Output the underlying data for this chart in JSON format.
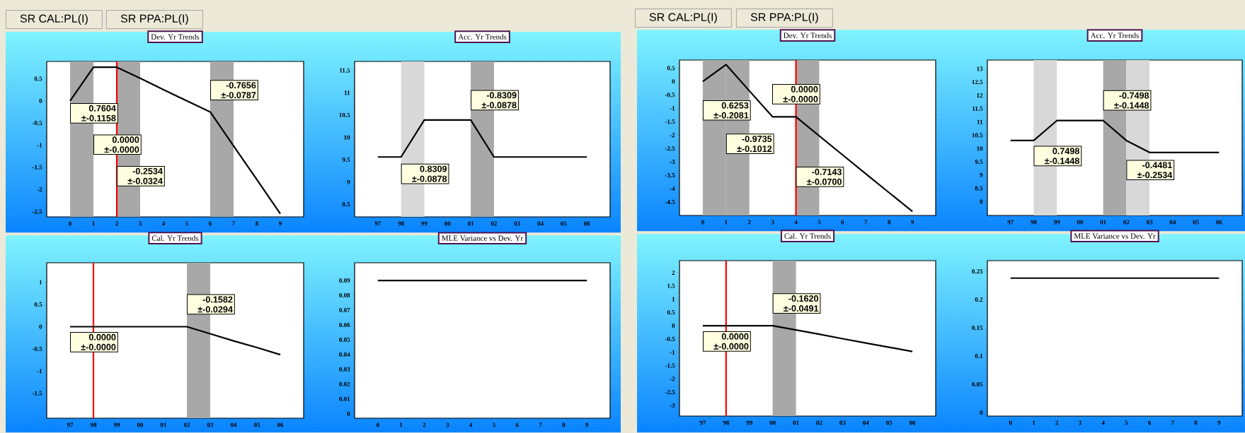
{
  "chart_data": [
    {
      "type": "line",
      "title": "Dev. Yr Trends",
      "x": [
        0,
        1,
        2,
        3,
        4,
        5,
        6,
        7,
        8,
        9
      ],
      "series": [
        {
          "color": "#000000",
          "values": [
            0,
            0.76,
            0.76,
            0.51,
            0.25,
            0,
            -0.25,
            -1.02,
            -1.78,
            -2.55
          ]
        }
      ],
      "xlim": [
        -1,
        10
      ],
      "ylim": [
        -2.62,
        0.89
      ],
      "xticks": [
        0,
        1,
        2,
        3,
        4,
        5,
        6,
        7,
        8,
        9
      ],
      "yticks": [
        -2.5,
        -2,
        -1.5,
        -1,
        -0.5,
        0,
        0.5
      ],
      "bands": [
        {
          "axis": "x",
          "from": 0,
          "to": 1,
          "color": "#a8a8a8"
        },
        {
          "axis": "x",
          "from": 2,
          "to": 3,
          "color": "#a8a8a8"
        },
        {
          "axis": "x",
          "from": 6,
          "to": 7,
          "color": "#a8a8a8"
        }
      ],
      "ref_lines": [
        {
          "axis": "x",
          "value": 2,
          "color": "#ff0000"
        }
      ],
      "annotations": [
        "SR CAL:PL(I)",
        "SR PPA:PL(I)",
        {
          "text": "0.7604 ±-0.1158",
          "x": 0,
          "y": -0.05
        },
        {
          "text": "0.0000 ±-0.0000",
          "x": 1,
          "y": -0.76
        },
        {
          "text": "-0.2534 ±-0.0324",
          "x": 2,
          "y": -1.47
        },
        {
          "text": "-0.7656 ±-0.0787",
          "x": 6,
          "y": 0.47
        }
      ]
    },
    {
      "type": "line",
      "title": "Acc. Yr Trends",
      "x": [
        1997,
        1998,
        1999,
        2000,
        2001,
        2002,
        2003,
        2004,
        2005,
        2006
      ],
      "series": [
        {
          "color": "#000000",
          "values": [
            9.56,
            9.56,
            10.39,
            10.39,
            10.39,
            9.56,
            9.56,
            9.56,
            9.56,
            9.56
          ]
        }
      ],
      "xlim": [
        1996,
        2007
      ],
      "ylim": [
        8.22,
        11.7
      ],
      "xticks": [
        {
          "value": 1997,
          "label": "97"
        },
        {
          "value": 1998,
          "label": "98"
        },
        {
          "value": 1999,
          "label": "99"
        },
        {
          "value": 2000,
          "label": "00"
        },
        {
          "value": 2001,
          "label": "01"
        },
        {
          "value": 2002,
          "label": "02"
        },
        {
          "value": 2003,
          "label": "03"
        },
        {
          "value": 2004,
          "label": "04"
        },
        {
          "value": 2005,
          "label": "05"
        },
        {
          "value": 2006,
          "label": "06"
        }
      ],
      "yticks": [
        8.5,
        9,
        9.5,
        10,
        10.5,
        11,
        11.5
      ],
      "bands": [
        {
          "axis": "x",
          "from": 1998,
          "to": 1999,
          "color": "#d8d8d8"
        },
        {
          "axis": "x",
          "from": 2001,
          "to": 2002,
          "color": "#a8a8a8"
        }
      ],
      "annotations": [
        {
          "text": "-0.8309 ±-0.0878",
          "x": 2001,
          "y": 11.06
        },
        {
          "text": "0.8309 ±-0.0878",
          "x": 1998,
          "y": 9.41
        }
      ]
    },
    {
      "type": "line",
      "title": "Cal. Yr Trends",
      "x": [
        1997,
        1998,
        1999,
        2000,
        2001,
        2002,
        2003,
        2004,
        2005,
        2006
      ],
      "series": [
        {
          "color": "#000000",
          "values": [
            0,
            0,
            0,
            0,
            0,
            0,
            -0.16,
            -0.32,
            -0.47,
            -0.63
          ]
        }
      ],
      "xlim": [
        1996,
        2007
      ],
      "ylim": [
        -2.06,
        1.44
      ],
      "xticks": [
        {
          "value": 1997,
          "label": "97"
        },
        {
          "value": 1998,
          "label": "98"
        },
        {
          "value": 1999,
          "label": "99"
        },
        {
          "value": 2000,
          "label": "00"
        },
        {
          "value": 2001,
          "label": "01"
        },
        {
          "value": 2002,
          "label": "02"
        },
        {
          "value": 2003,
          "label": "03"
        },
        {
          "value": 2004,
          "label": "04"
        },
        {
          "value": 2005,
          "label": "05"
        },
        {
          "value": 2006,
          "label": "06"
        }
      ],
      "yticks": [
        -1.5,
        -1,
        -0.5,
        0,
        0.5,
        1
      ],
      "bands": [
        {
          "axis": "x",
          "from": 2002,
          "to": 2003,
          "color": "#a8a8a8"
        }
      ],
      "ref_lines": [
        {
          "axis": "x",
          "value": 1998,
          "color": "#ff0000"
        }
      ],
      "annotations": [
        {
          "text": "-0.1582 ±-0.0294",
          "x": 2002,
          "y": 0.73
        },
        "0.0000 ±-0.0000"
      ]
    },
    {
      "type": "line",
      "title": "MLE Variance vs Dev. Yr",
      "x": [
        0,
        1,
        2,
        3,
        4,
        5,
        6,
        7,
        8,
        9
      ],
      "series": [
        {
          "color": "#000000",
          "values": [
            0.09,
            0.09,
            0.09,
            0.09,
            0.09,
            0.09,
            0.09,
            0.09,
            0.09,
            0.09
          ]
        }
      ],
      "xlim": [
        -1,
        10
      ],
      "ylim": [
        -0.003,
        0.102
      ],
      "xticks": [
        0,
        1,
        2,
        3,
        4,
        5,
        6,
        7,
        8,
        9
      ],
      "yticks": [
        0,
        0.01,
        0.02,
        0.03,
        0.04,
        0.05,
        0.06,
        0.07,
        0.08,
        0.09
      ]
    },
    {
      "type": "line",
      "title": "Dev. Yr Trends",
      "x": [
        0,
        1,
        2,
        3,
        4,
        5,
        6,
        7,
        8,
        9
      ],
      "series": [
        {
          "color": "#000000",
          "values": [
            0,
            0.63,
            -0.35,
            -1.32,
            -1.32,
            -2.03,
            -2.74,
            -3.45,
            -4.15,
            -4.85
          ]
        }
      ],
      "xlim": [
        -1,
        10
      ],
      "ylim": [
        -5.0,
        0.8
      ],
      "xticks": [
        0,
        1,
        2,
        3,
        4,
        5,
        6,
        7,
        8,
        9
      ],
      "yticks": [
        -4.5,
        -4,
        -3.5,
        -3,
        -2.5,
        -2,
        -1.5,
        -1,
        -0.5,
        0,
        0.5
      ],
      "bands": [
        {
          "axis": "x",
          "from": 0,
          "to": 1,
          "color": "#a8a8a8"
        },
        {
          "axis": "x",
          "from": 1,
          "to": 2,
          "color": "#a8a8a8"
        },
        {
          "axis": "x",
          "from": 4,
          "to": 5,
          "color": "#a8a8a8"
        }
      ],
      "ref_lines": [
        {
          "axis": "x",
          "value": 4,
          "color": "#ff0000"
        }
      ],
      "annotations": [
        "SR CAL:PL(I)",
        "SR PPA:PL(I)",
        {
          "text": "0.6253 ±-0.2081",
          "x": 0,
          "y": -0.7
        },
        {
          "text": "-0.9735 ±-0.1012",
          "x": 1,
          "y": -1.95
        },
        "0.0000 ±-0.0000",
        {
          "text": "-0.7143 ±-0.0700",
          "x": 4,
          "y": -3.18
        }
      ]
    },
    {
      "type": "line",
      "title": "Acc. Yr Trends",
      "x": [
        1997,
        1998,
        1999,
        2000,
        2001,
        2002,
        2003,
        2004,
        2005,
        2006
      ],
      "series": [
        {
          "color": "#000000",
          "values": [
            10.3,
            10.3,
            11.05,
            11.05,
            11.05,
            10.3,
            9.85,
            9.85,
            9.85,
            9.85
          ]
        }
      ],
      "xlim": [
        1996,
        2007
      ],
      "ylim": [
        7.48,
        13.33
      ],
      "xticks": [
        {
          "value": 1997,
          "label": "97"
        },
        {
          "value": 1998,
          "label": "98"
        },
        {
          "value": 1999,
          "label": "99"
        },
        {
          "value": 2000,
          "label": "00"
        },
        {
          "value": 2001,
          "label": "01"
        },
        {
          "value": 2002,
          "label": "02"
        },
        {
          "value": 2003,
          "label": "03"
        },
        {
          "value": 2004,
          "label": "04"
        },
        {
          "value": 2005,
          "label": "05"
        },
        {
          "value": 2006,
          "label": "06"
        }
      ],
      "yticks": [
        8,
        8.5,
        9,
        9.5,
        10,
        10.5,
        11,
        11.5,
        12,
        12.5,
        13
      ],
      "bands": [
        {
          "axis": "x",
          "from": 1998,
          "to": 1999,
          "color": "#d8d8d8"
        },
        {
          "axis": "x",
          "from": 2001,
          "to": 2002,
          "color": "#a8a8a8"
        },
        {
          "axis": "x",
          "from": 2002,
          "to": 2003,
          "color": "#d8d8d8"
        }
      ],
      "annotations": [
        {
          "text": "-0.7498 ±-0.1448",
          "x": 2001,
          "y": 12.19
        },
        {
          "text": "0.7498 ±-0.1448",
          "x": 1998,
          "y": 10.1
        },
        {
          "text": "-0.4481 ±-0.2534",
          "x": 2002,
          "y": 9.57
        }
      ]
    },
    {
      "type": "line",
      "title": "Cal. Yr Trends",
      "x": [
        1997,
        1998,
        1999,
        2000,
        2001,
        2002,
        2003,
        2004,
        2005,
        2006
      ],
      "series": [
        {
          "color": "#000000",
          "values": [
            0,
            0,
            0,
            0,
            -0.16,
            -0.32,
            -0.49,
            -0.65,
            -0.81,
            -0.97
          ]
        }
      ],
      "xlim": [
        1996,
        2007
      ],
      "ylim": [
        -3.4,
        2.45
      ],
      "xticks": [
        {
          "value": 1997,
          "label": "97"
        },
        {
          "value": 1998,
          "label": "98"
        },
        {
          "value": 1999,
          "label": "99"
        },
        {
          "value": 2000,
          "label": "00"
        },
        {
          "value": 2001,
          "label": "01"
        },
        {
          "value": 2002,
          "label": "02"
        },
        {
          "value": 2003,
          "label": "03"
        },
        {
          "value": 2004,
          "label": "04"
        },
        {
          "value": 2005,
          "label": "05"
        },
        {
          "value": 2006,
          "label": "06"
        }
      ],
      "yticks": [
        -3,
        -2.5,
        -2,
        -1.5,
        -1,
        -0.5,
        0,
        0.5,
        1,
        1.5,
        2
      ],
      "bands": [
        {
          "axis": "x",
          "from": 2000,
          "to": 2001,
          "color": "#a8a8a8"
        }
      ],
      "ref_lines": [
        {
          "axis": "x",
          "value": 1998,
          "color": "#ff0000"
        }
      ],
      "annotations": [
        {
          "text": "-0.1620 ±-0.0491",
          "x": 2000,
          "y": 1.22
        },
        "0.0000 ±-0.0000"
      ]
    },
    {
      "type": "line",
      "title": "MLE Variance vs Dev. Yr",
      "x": [
        0,
        1,
        2,
        3,
        4,
        5,
        6,
        7,
        8,
        9
      ],
      "series": [
        {
          "color": "#000000",
          "values": [
            0.238,
            0.238,
            0.238,
            0.238,
            0.238,
            0.238,
            0.238,
            0.238,
            0.238,
            0.238
          ]
        }
      ],
      "xlim": [
        -1,
        10
      ],
      "ylim": [
        -0.0063,
        0.269
      ],
      "xticks": [
        0,
        1,
        2,
        3,
        4,
        5,
        6,
        7,
        8,
        9
      ],
      "yticks": [
        0,
        0.05,
        0.1,
        0.15,
        0.2,
        0.25
      ]
    }
  ]
}
